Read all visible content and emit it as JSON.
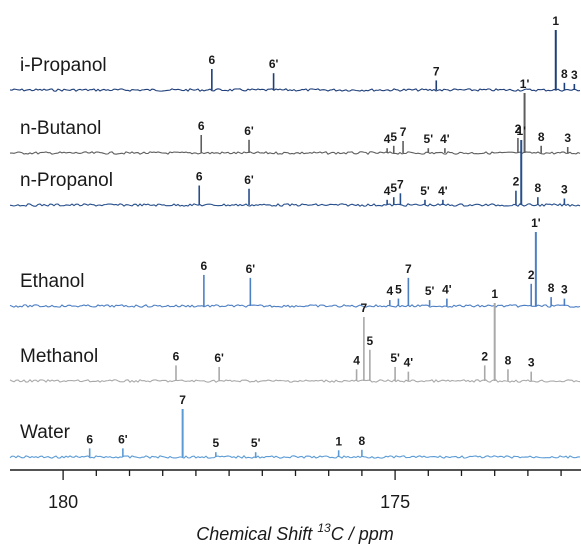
{
  "chart_data": {
    "type": "line",
    "title": "",
    "xlabel": "Chemical Shift",
    "xlabel_sup": "13",
    "xlabel_unit": "C / ppm",
    "x_reversed": true,
    "xlim": [
      180.8,
      172.2
    ],
    "x_ticks": [
      {
        "value": 180,
        "label": "180",
        "major": true
      },
      {
        "value": 179.5,
        "label": "",
        "major": false
      },
      {
        "value": 179,
        "label": "",
        "major": false
      },
      {
        "value": 178.5,
        "label": "",
        "major": false
      },
      {
        "value": 178,
        "label": "",
        "major": false
      },
      {
        "value": 177.5,
        "label": "",
        "major": false
      },
      {
        "value": 177,
        "label": "",
        "major": false
      },
      {
        "value": 176.5,
        "label": "",
        "major": false
      },
      {
        "value": 176,
        "label": "",
        "major": false
      },
      {
        "value": 175.5,
        "label": "",
        "major": false
      },
      {
        "value": 175,
        "label": "175",
        "major": true
      },
      {
        "value": 174.5,
        "label": "",
        "major": false
      },
      {
        "value": 174,
        "label": "",
        "major": false
      },
      {
        "value": 173.5,
        "label": "",
        "major": false
      },
      {
        "value": 173,
        "label": "",
        "major": false
      },
      {
        "value": 172.5,
        "label": "",
        "major": false
      }
    ],
    "series": [
      {
        "name": "i-Propanol",
        "color": "#1f3f7a",
        "peaks": [
          {
            "x": 177.76,
            "h": 0.35,
            "label": "6"
          },
          {
            "x": 176.83,
            "h": 0.28,
            "label": "6'"
          },
          {
            "x": 174.38,
            "h": 0.16,
            "label": "7"
          },
          {
            "x": 172.58,
            "h": 1.0,
            "label": "1"
          },
          {
            "x": 172.45,
            "h": 0.12,
            "label": "8"
          },
          {
            "x": 172.3,
            "h": 0.1,
            "label": "3"
          }
        ]
      },
      {
        "name": "n-Butanol",
        "color": "#5e5e5e",
        "peaks": [
          {
            "x": 177.92,
            "h": 0.3,
            "label": "6"
          },
          {
            "x": 177.2,
            "h": 0.22,
            "label": "6'"
          },
          {
            "x": 175.12,
            "h": 0.08,
            "label": "4"
          },
          {
            "x": 175.02,
            "h": 0.12,
            "label": "5"
          },
          {
            "x": 174.88,
            "h": 0.2,
            "label": "7"
          },
          {
            "x": 174.5,
            "h": 0.08,
            "label": "5'"
          },
          {
            "x": 174.25,
            "h": 0.08,
            "label": "4'"
          },
          {
            "x": 173.15,
            "h": 0.25,
            "label": "2"
          },
          {
            "x": 173.05,
            "h": 1.0,
            "label": "1'"
          },
          {
            "x": 172.8,
            "h": 0.12,
            "label": "8"
          },
          {
            "x": 172.4,
            "h": 0.1,
            "label": "3"
          }
        ]
      },
      {
        "name": "n-Propanol",
        "color": "#274f8c",
        "peaks": [
          {
            "x": 177.95,
            "h": 0.3,
            "label": "6"
          },
          {
            "x": 177.2,
            "h": 0.25,
            "label": "6'"
          },
          {
            "x": 175.12,
            "h": 0.08,
            "label": "4"
          },
          {
            "x": 175.02,
            "h": 0.12,
            "label": "5"
          },
          {
            "x": 174.92,
            "h": 0.18,
            "label": "7"
          },
          {
            "x": 174.55,
            "h": 0.08,
            "label": "5'"
          },
          {
            "x": 174.28,
            "h": 0.08,
            "label": "4'"
          },
          {
            "x": 173.18,
            "h": 0.22,
            "label": "2"
          },
          {
            "x": 173.1,
            "h": 1.0,
            "label": "1'"
          },
          {
            "x": 172.85,
            "h": 0.12,
            "label": "8"
          },
          {
            "x": 172.45,
            "h": 0.1,
            "label": "3"
          }
        ]
      },
      {
        "name": "Ethanol",
        "color": "#4d7fc4",
        "peaks": [
          {
            "x": 177.88,
            "h": 0.42,
            "label": "6"
          },
          {
            "x": 177.18,
            "h": 0.38,
            "label": "6'"
          },
          {
            "x": 175.08,
            "h": 0.08,
            "label": "4"
          },
          {
            "x": 174.95,
            "h": 0.1,
            "label": "5"
          },
          {
            "x": 174.8,
            "h": 0.38,
            "label": "7"
          },
          {
            "x": 174.48,
            "h": 0.08,
            "label": "5'"
          },
          {
            "x": 174.22,
            "h": 0.1,
            "label": "4'"
          },
          {
            "x": 172.95,
            "h": 0.3,
            "label": "2"
          },
          {
            "x": 172.88,
            "h": 1.0,
            "label": "1'"
          },
          {
            "x": 172.65,
            "h": 0.12,
            "label": "8"
          },
          {
            "x": 172.45,
            "h": 0.1,
            "label": "3"
          }
        ]
      },
      {
        "name": "Methanol",
        "color": "#a9a9a9",
        "peaks": [
          {
            "x": 178.3,
            "h": 0.2,
            "label": "6"
          },
          {
            "x": 177.65,
            "h": 0.18,
            "label": "6'"
          },
          {
            "x": 175.58,
            "h": 0.15,
            "label": "4"
          },
          {
            "x": 175.47,
            "h": 0.82,
            "label": "7"
          },
          {
            "x": 175.38,
            "h": 0.4,
            "label": "5"
          },
          {
            "x": 175.0,
            "h": 0.18,
            "label": "5'"
          },
          {
            "x": 174.8,
            "h": 0.12,
            "label": "4'"
          },
          {
            "x": 173.65,
            "h": 0.2,
            "label": "2"
          },
          {
            "x": 173.5,
            "h": 1.0,
            "label": "1"
          },
          {
            "x": 173.3,
            "h": 0.15,
            "label": "8"
          },
          {
            "x": 172.95,
            "h": 0.12,
            "label": "3"
          }
        ]
      },
      {
        "name": "Water",
        "color": "#5b9bd5",
        "peaks": [
          {
            "x": 179.6,
            "h": 0.18,
            "label": "6"
          },
          {
            "x": 179.1,
            "h": 0.18,
            "label": "6'"
          },
          {
            "x": 178.2,
            "h": 1.0,
            "label": "7"
          },
          {
            "x": 177.7,
            "h": 0.1,
            "label": "5"
          },
          {
            "x": 177.1,
            "h": 0.1,
            "label": "5'"
          },
          {
            "x": 175.85,
            "h": 0.14,
            "label": "1"
          },
          {
            "x": 175.5,
            "h": 0.15,
            "label": "8"
          }
        ]
      }
    ]
  }
}
